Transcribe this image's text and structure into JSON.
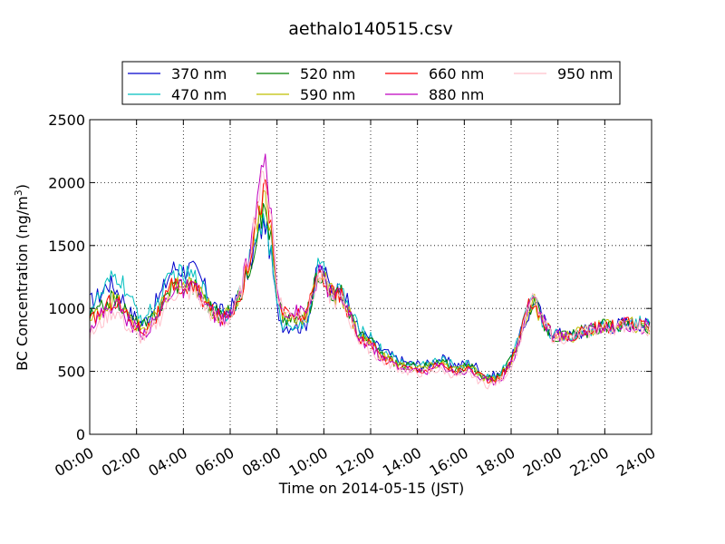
{
  "chart_data": {
    "type": "line",
    "title": "aethalo140515.csv",
    "xlabel": "Time on 2014-05-15 (JST)",
    "ylabel_main": "BC Concentration (ng/m",
    "ylabel_sup": "3",
    "ylabel_tail": ")",
    "xlim_hours": [
      0,
      24
    ],
    "ylim": [
      0,
      2500
    ],
    "grid": true,
    "legend_position": "top",
    "x_tick_labels": [
      "00:00",
      "02:00",
      "04:00",
      "06:00",
      "08:00",
      "10:00",
      "12:00",
      "14:00",
      "16:00",
      "18:00",
      "20:00",
      "22:00",
      "24:00"
    ],
    "y_tick_labels": [
      "0",
      "500",
      "1000",
      "1500",
      "2000",
      "2500"
    ],
    "x_hours": [
      0,
      0.25,
      0.5,
      0.75,
      1,
      1.25,
      1.5,
      1.75,
      2,
      2.25,
      2.5,
      2.75,
      3,
      3.25,
      3.5,
      3.75,
      4,
      4.25,
      4.5,
      4.75,
      5,
      5.25,
      5.5,
      5.75,
      6,
      6.25,
      6.5,
      6.75,
      7,
      7.25,
      7.5,
      7.75,
      8,
      8.25,
      8.5,
      8.75,
      9,
      9.25,
      9.5,
      9.75,
      10,
      10.25,
      10.5,
      10.75,
      11,
      11.25,
      11.5,
      11.75,
      12,
      12.25,
      12.5,
      12.75,
      13,
      13.25,
      13.5,
      13.75,
      14,
      14.25,
      14.5,
      14.75,
      15,
      15.25,
      15.5,
      15.75,
      16,
      16.25,
      16.5,
      16.75,
      17,
      17.25,
      17.5,
      17.75,
      18,
      18.25,
      18.5,
      18.75,
      19,
      19.25,
      19.5,
      19.75,
      20,
      20.25,
      20.5,
      20.75,
      21,
      21.25,
      21.5,
      21.75,
      22,
      22.25,
      22.5,
      22.75,
      23,
      23.25,
      23.5,
      23.75
    ],
    "series": [
      {
        "name": "370 nm",
        "color": "#0000cc",
        "values": [
          1050,
          1080,
          1120,
          1200,
          1180,
          1130,
          1050,
          960,
          920,
          880,
          930,
          1020,
          1100,
          1200,
          1310,
          1330,
          1300,
          1320,
          1290,
          1230,
          1130,
          1050,
          990,
          960,
          1000,
          1060,
          1150,
          1280,
          1450,
          1600,
          1680,
          1400,
          1000,
          870,
          860,
          870,
          850,
          880,
          1100,
          1310,
          1300,
          1180,
          1140,
          1150,
          1050,
          920,
          830,
          780,
          760,
          700,
          670,
          640,
          610,
          590,
          570,
          560,
          560,
          550,
          560,
          590,
          600,
          580,
          560,
          550,
          560,
          570,
          540,
          480,
          470,
          470,
          480,
          530,
          600,
          700,
          850,
          950,
          1080,
          960,
          870,
          820,
          800,
          790,
          780,
          800,
          810,
          830,
          850,
          860,
          860,
          850,
          870,
          880,
          890,
          880,
          880,
          870
        ]
      },
      {
        "name": "470 nm",
        "color": "#00bfbf",
        "values": [
          1000,
          1060,
          1100,
          1180,
          1240,
          1250,
          1160,
          1050,
          990,
          930,
          950,
          1010,
          1060,
          1170,
          1260,
          1280,
          1250,
          1260,
          1240,
          1180,
          1100,
          1030,
          980,
          950,
          990,
          1060,
          1160,
          1310,
          1500,
          1660,
          1700,
          1420,
          1010,
          880,
          870,
          890,
          860,
          860,
          1080,
          1330,
          1280,
          1170,
          1120,
          1160,
          1030,
          930,
          830,
          790,
          780,
          720,
          660,
          650,
          600,
          580,
          560,
          560,
          550,
          560,
          560,
          580,
          590,
          580,
          550,
          540,
          550,
          560,
          520,
          480,
          460,
          470,
          480,
          540,
          620,
          720,
          870,
          1000,
          1080,
          920,
          860,
          800,
          790,
          790,
          780,
          800,
          820,
          830,
          840,
          870,
          870,
          860,
          870,
          880,
          890,
          880,
          880,
          860
        ]
      },
      {
        "name": "520 nm",
        "color": "#008000",
        "values": [
          930,
          960,
          1000,
          1050,
          1080,
          1050,
          980,
          920,
          890,
          860,
          880,
          940,
          1000,
          1090,
          1180,
          1200,
          1180,
          1190,
          1170,
          1120,
          1050,
          990,
          960,
          940,
          970,
          1040,
          1140,
          1290,
          1480,
          1700,
          1800,
          1550,
          1080,
          930,
          900,
          920,
          920,
          930,
          1090,
          1300,
          1260,
          1150,
          1110,
          1120,
          1010,
          900,
          800,
          760,
          740,
          680,
          630,
          610,
          580,
          560,
          540,
          540,
          530,
          540,
          540,
          560,
          570,
          560,
          530,
          520,
          530,
          540,
          500,
          470,
          450,
          450,
          470,
          520,
          590,
          700,
          860,
          1000,
          1060,
          920,
          850,
          790,
          780,
          780,
          770,
          790,
          810,
          820,
          830,
          850,
          860,
          850,
          860,
          870,
          880,
          870,
          860,
          840
        ]
      },
      {
        "name": "590 nm",
        "color": "#bfbf00",
        "values": [
          900,
          940,
          980,
          1030,
          1070,
          1040,
          970,
          910,
          870,
          840,
          860,
          920,
          990,
          1080,
          1170,
          1190,
          1170,
          1180,
          1160,
          1110,
          1040,
          980,
          950,
          930,
          960,
          1040,
          1150,
          1320,
          1560,
          1800,
          1900,
          1600,
          1100,
          950,
          920,
          930,
          930,
          940,
          1080,
          1280,
          1250,
          1140,
          1100,
          1110,
          1000,
          890,
          790,
          750,
          730,
          670,
          620,
          600,
          570,
          550,
          540,
          530,
          520,
          530,
          530,
          550,
          560,
          550,
          520,
          510,
          520,
          530,
          490,
          460,
          440,
          440,
          460,
          510,
          580,
          690,
          850,
          1000,
          1060,
          920,
          850,
          790,
          780,
          780,
          770,
          790,
          810,
          820,
          830,
          850,
          860,
          850,
          860,
          870,
          880,
          870,
          860,
          840
        ]
      },
      {
        "name": "660 nm",
        "color": "#ff0000",
        "values": [
          890,
          930,
          980,
          1030,
          1070,
          1040,
          960,
          900,
          860,
          830,
          850,
          910,
          980,
          1070,
          1160,
          1180,
          1160,
          1170,
          1150,
          1100,
          1030,
          970,
          940,
          920,
          950,
          1040,
          1160,
          1340,
          1600,
          1840,
          1950,
          1650,
          1120,
          970,
          940,
          950,
          950,
          950,
          1090,
          1290,
          1250,
          1140,
          1100,
          1110,
          1000,
          880,
          780,
          740,
          720,
          660,
          610,
          590,
          560,
          550,
          530,
          520,
          510,
          520,
          520,
          540,
          550,
          540,
          510,
          500,
          510,
          520,
          480,
          450,
          430,
          430,
          450,
          500,
          580,
          690,
          850,
          1010,
          1080,
          930,
          860,
          790,
          780,
          780,
          770,
          790,
          810,
          820,
          830,
          850,
          860,
          850,
          860,
          870,
          880,
          870,
          860,
          840
        ]
      },
      {
        "name": "880 nm",
        "color": "#bf00bf",
        "values": [
          860,
          900,
          950,
          1000,
          1040,
          1010,
          940,
          880,
          840,
          810,
          830,
          890,
          960,
          1060,
          1150,
          1170,
          1150,
          1160,
          1140,
          1090,
          1020,
          960,
          930,
          910,
          940,
          1040,
          1180,
          1380,
          1680,
          1950,
          2100,
          1750,
          1180,
          1010,
          960,
          970,
          970,
          960,
          1090,
          1280,
          1240,
          1130,
          1090,
          1100,
          990,
          870,
          770,
          730,
          710,
          650,
          600,
          580,
          560,
          540,
          520,
          510,
          500,
          510,
          510,
          530,
          540,
          530,
          500,
          490,
          500,
          510,
          470,
          440,
          420,
          420,
          440,
          490,
          570,
          680,
          850,
          1020,
          1120,
          950,
          870,
          790,
          780,
          780,
          770,
          790,
          810,
          820,
          830,
          850,
          860,
          850,
          860,
          870,
          880,
          870,
          860,
          850
        ]
      },
      {
        "name": "950 nm",
        "color": "#ffc0cb",
        "values": [
          780,
          830,
          880,
          940,
          980,
          950,
          880,
          820,
          780,
          760,
          790,
          850,
          920,
          1020,
          1110,
          1130,
          1120,
          1130,
          1110,
          1060,
          990,
          940,
          910,
          890,
          920,
          1020,
          1160,
          1360,
          1660,
          1920,
          2060,
          1720,
          1160,
          990,
          950,
          960,
          960,
          950,
          1070,
          1250,
          1210,
          1100,
          1060,
          1070,
          960,
          850,
          750,
          700,
          680,
          620,
          580,
          560,
          540,
          520,
          500,
          490,
          480,
          490,
          490,
          510,
          510,
          500,
          470,
          460,
          470,
          480,
          440,
          410,
          390,
          400,
          420,
          470,
          550,
          670,
          840,
          1000,
          1090,
          930,
          850,
          780,
          770,
          770,
          760,
          780,
          800,
          810,
          820,
          840,
          850,
          840,
          850,
          860,
          870,
          860,
          850,
          840
        ]
      }
    ]
  }
}
